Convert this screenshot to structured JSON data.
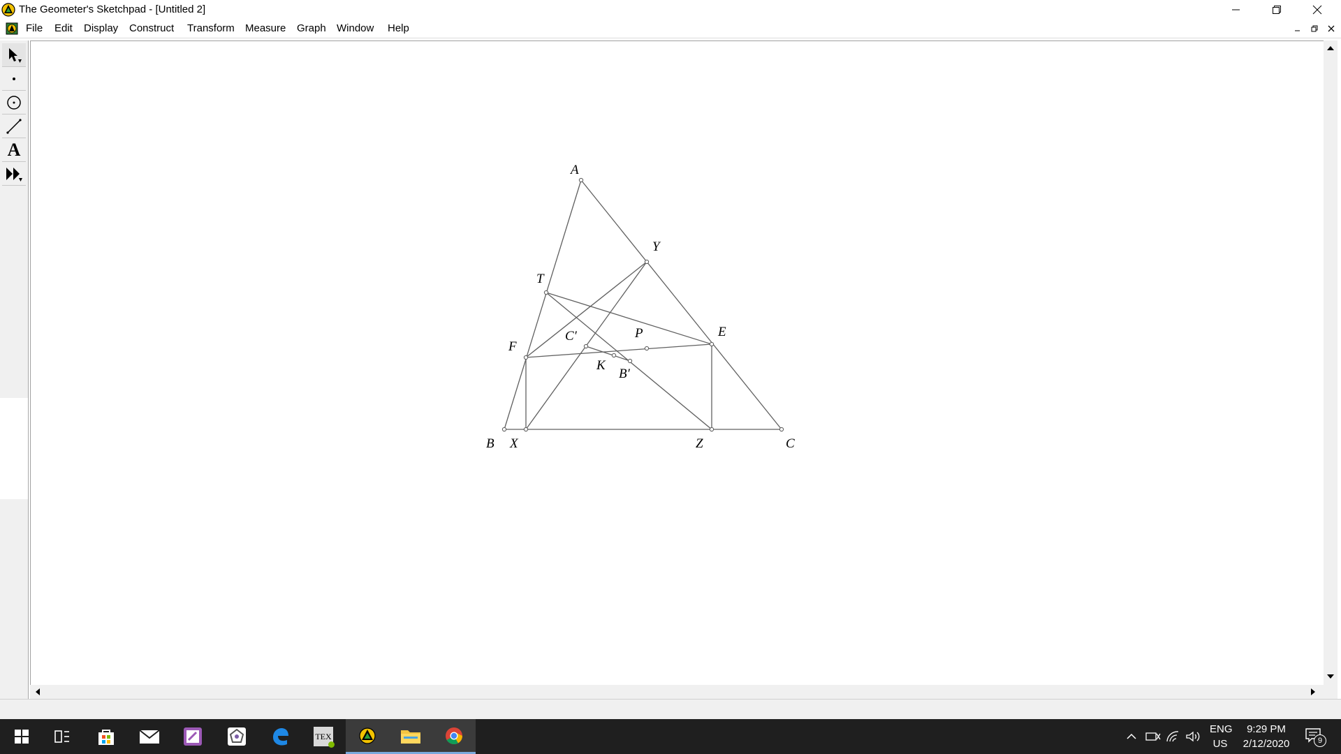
{
  "window": {
    "title": "The Geometer's Sketchpad - [Untitled 2]"
  },
  "menu": {
    "items": [
      "File",
      "Edit",
      "Display",
      "Construct",
      "Transform",
      "Measure",
      "Graph",
      "Window",
      "Help"
    ]
  },
  "toolbox": {
    "tools": [
      "arrow-select-tool",
      "point-tool",
      "compass-tool",
      "straightedge-tool",
      "text-tool",
      "custom-tool"
    ],
    "text_tool_glyph": "A"
  },
  "sketch": {
    "labels": {
      "A": "A",
      "Y": "Y",
      "T": "T",
      "E": "E",
      "P": "P",
      "C_prime": "C′",
      "F": "F",
      "K": "K",
      "B_prime": "B′",
      "B": "B",
      "X": "X",
      "Z": "Z",
      "C": "C"
    },
    "line_color": "#606060"
  },
  "taskbar": {
    "icons": [
      "windows-start-icon",
      "task-view-icon",
      "store-icon",
      "mail-icon",
      "onenote-icon",
      "sketchpad-icon",
      "edge-icon",
      "texmaker-icon",
      "geometers-sketchpad-icon",
      "file-explorer-icon",
      "chrome-icon"
    ],
    "tex_glyph": "TEX",
    "lang_top": "ENG",
    "lang_bottom": "US",
    "time": "9:29 PM",
    "date": "2/12/2020",
    "notification_count": "9"
  }
}
